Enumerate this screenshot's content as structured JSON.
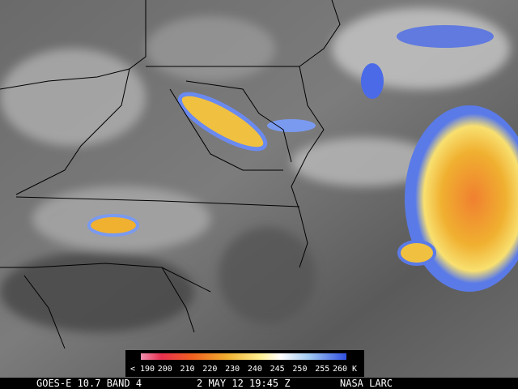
{
  "colorbar": {
    "labels": [
      "< 190",
      "200",
      "210",
      "220",
      "230",
      "240",
      "245",
      "250",
      "255",
      "260 K"
    ]
  },
  "caption": {
    "satellite": "GOES-E 10.7 BAND 4",
    "datetime": "2 MAY 12 19:45 Z",
    "source": "NASA LARC"
  }
}
